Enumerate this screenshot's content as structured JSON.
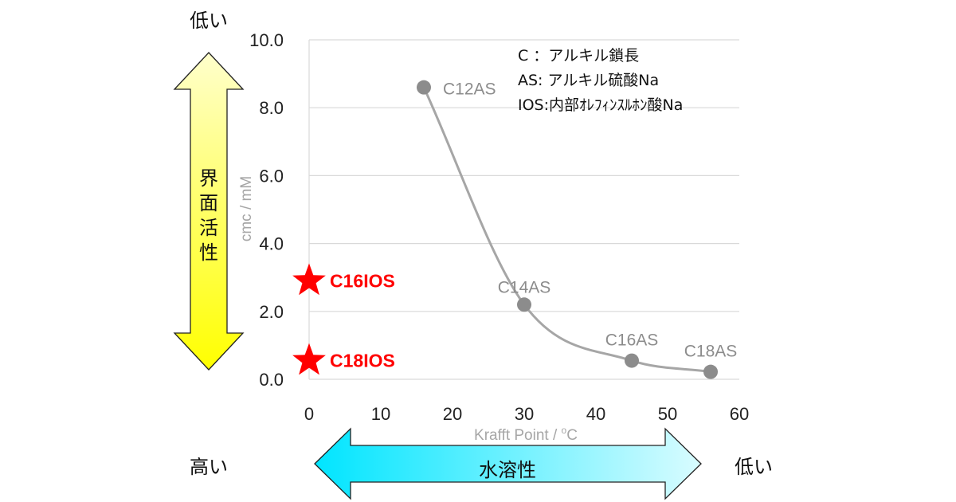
{
  "chart_data": {
    "type": "scatter",
    "x_axis": {
      "label_main": "Krafft Point / ",
      "label_sup": "o",
      "label_unit": "C",
      "range": [
        0,
        60
      ],
      "ticks": [
        "0",
        "10",
        "20",
        "30",
        "40",
        "50",
        "60"
      ]
    },
    "y_axis": {
      "label": "cmc / mM",
      "range": [
        0,
        10
      ],
      "ticks": [
        "0.0",
        "2.0",
        "4.0",
        "6.0",
        "8.0",
        "10.0"
      ]
    },
    "grid": "horizontal",
    "series": [
      {
        "points": [
          {
            "label": "C12AS",
            "x": 16,
            "y": 8.6
          },
          {
            "label": "C14AS",
            "x": 30,
            "y": 2.2
          },
          {
            "label": "C16AS",
            "x": 45,
            "y": 0.55
          },
          {
            "label": "C18AS",
            "x": 56,
            "y": 0.22
          }
        ],
        "color": "#8c8c8c"
      }
    ],
    "highlighted_points": [
      {
        "label": "C16IOS",
        "x": 0,
        "y": 2.9,
        "color": "#ff0000",
        "marker": "star"
      },
      {
        "label": "C18IOS",
        "x": 0,
        "y": 0.55,
        "color": "#ff0000",
        "marker": "star"
      }
    ],
    "legend": {
      "placement": "top-right",
      "lines": [
        "C ：アルキル鎖長",
        "AS: アルキル硫酸Na",
        "IOS:内部ｵﾚﾌｨﾝｽﾙﾎﾝ酸Na"
      ]
    },
    "vertical_arrow": {
      "text": [
        "界",
        "面",
        "活",
        "性"
      ],
      "top_label": "低い",
      "bottom_label": "高い",
      "color_top": "#ffff66",
      "color_bottom": "#ffff00"
    },
    "horizontal_arrow": {
      "text": "水溶性",
      "right_label": "低い",
      "color_left": "#00e5ff",
      "color_right": "#ccfbff"
    }
  }
}
